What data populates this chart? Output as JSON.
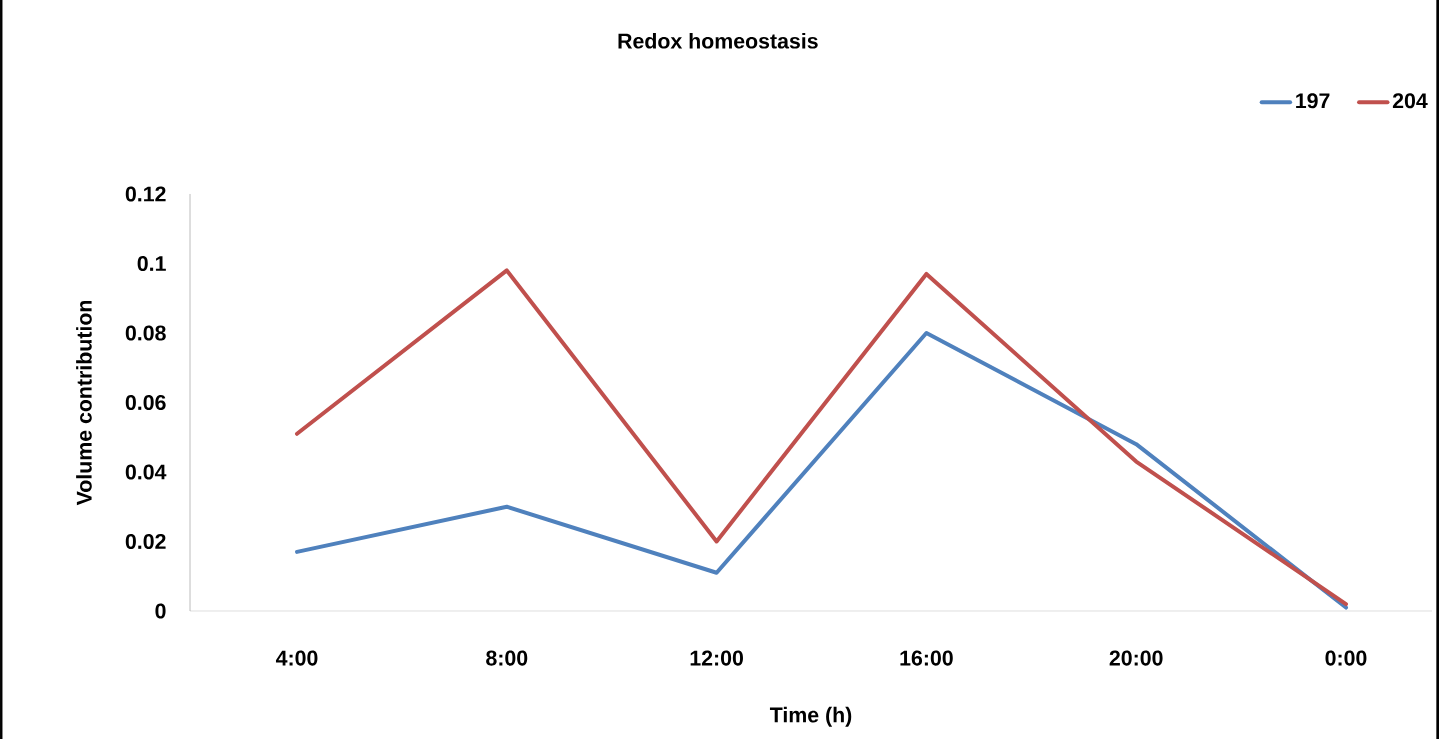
{
  "chart_data": {
    "type": "line",
    "title": "Redox homeostasis",
    "xlabel": "Time (h)",
    "ylabel": "Volume contribution",
    "categories": [
      "4:00",
      "8:00",
      "12:00",
      "16:00",
      "20:00",
      "0:00"
    ],
    "series": [
      {
        "name": "197",
        "color": "#4f81bd",
        "values": [
          0.017,
          0.03,
          0.011,
          0.08,
          0.048,
          0.001
        ]
      },
      {
        "name": "204",
        "color": "#c0504d",
        "values": [
          0.051,
          0.098,
          0.02,
          0.097,
          0.043,
          0.002
        ]
      }
    ],
    "ylim": [
      0,
      0.12
    ],
    "yticks": [
      0,
      0.02,
      0.04,
      0.06,
      0.08,
      0.1,
      0.12
    ],
    "grid": false,
    "legend": "top right",
    "marker": "none",
    "line_style": "solid"
  }
}
